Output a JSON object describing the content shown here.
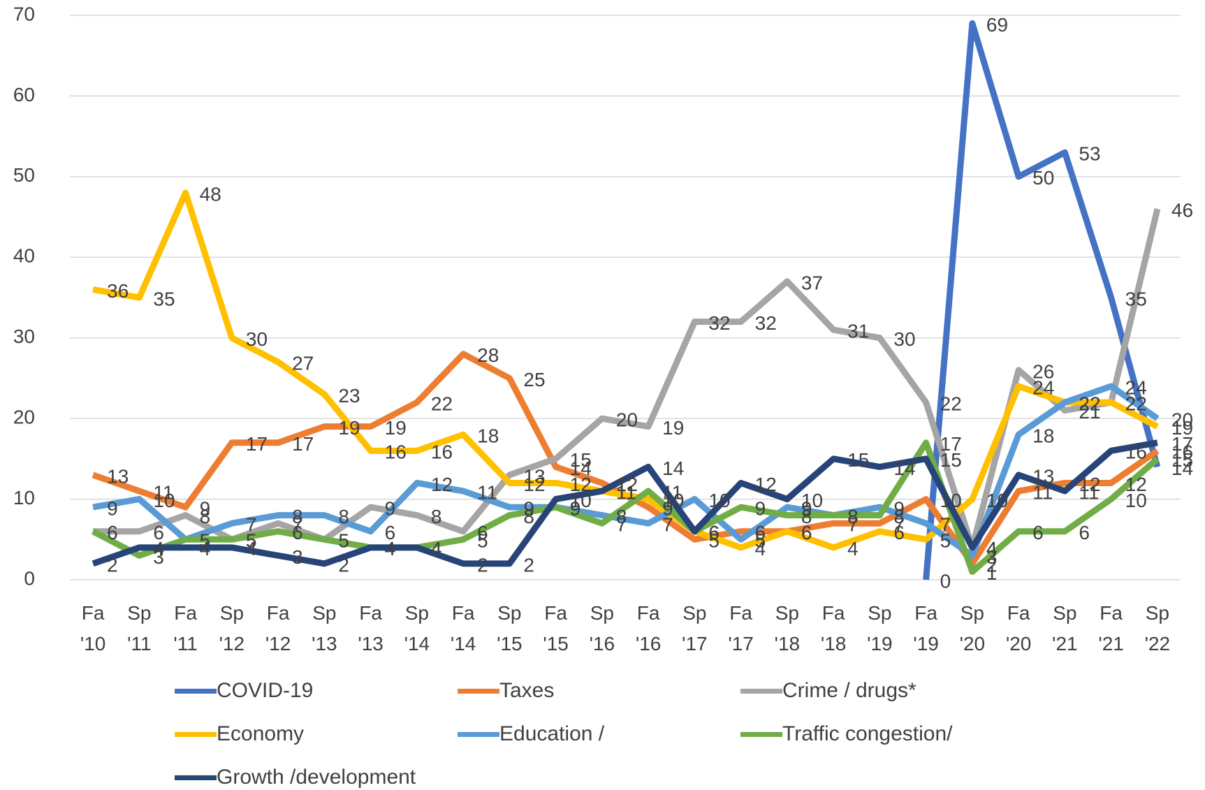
{
  "chart_data": {
    "type": "line",
    "categories": [
      "Fa '10",
      "Sp '11",
      "Fa '11",
      "Sp '12",
      "Fa '12",
      "Sp '13",
      "Fa '13",
      "Sp '14",
      "Fa '14",
      "Sp '15",
      "Fa '15",
      "Sp '16",
      "Fa '16",
      "Sp '17",
      "Fa '17",
      "Sp '18",
      "Fa '18",
      "Sp '19",
      "Fa '19",
      "Sp '20",
      "Fa '20",
      "Sp '21",
      "Fa '21",
      "Sp '22"
    ],
    "series": [
      {
        "name": "COVID-19",
        "color": "#4472c4",
        "values": [
          null,
          null,
          null,
          null,
          null,
          null,
          null,
          null,
          null,
          null,
          null,
          null,
          null,
          null,
          null,
          null,
          null,
          null,
          0,
          69,
          50,
          53,
          35,
          14
        ]
      },
      {
        "name": "Taxes",
        "color": "#ed7d31",
        "values": [
          13,
          11,
          9,
          17,
          17,
          19,
          19,
          22,
          28,
          25,
          14,
          12,
          9,
          5,
          6,
          6,
          7,
          7,
          10,
          2,
          11,
          12,
          12,
          16
        ]
      },
      {
        "name": "Crime / drugs*",
        "color": "#a5a5a5",
        "values": [
          6,
          6,
          8,
          5,
          7,
          5,
          9,
          8,
          6,
          13,
          15,
          20,
          19,
          32,
          32,
          37,
          31,
          30,
          22,
          4,
          26,
          21,
          22,
          46
        ]
      },
      {
        "name": "Economy",
        "color": "#ffc000",
        "values": [
          36,
          35,
          48,
          30,
          27,
          23,
          16,
          16,
          18,
          12,
          12,
          11,
          10,
          6,
          4,
          6,
          4,
          6,
          5,
          10,
          24,
          22,
          22,
          19
        ]
      },
      {
        "name": "Education /",
        "color": "#5b9bd5",
        "values": [
          9,
          10,
          5,
          7,
          8,
          8,
          6,
          12,
          11,
          9,
          9,
          8,
          7,
          10,
          5,
          9,
          8,
          9,
          7,
          3,
          18,
          22,
          24,
          20
        ]
      },
      {
        "name": "Traffic congestion/",
        "color": "#70ad47",
        "values": [
          6,
          3,
          5,
          5,
          6,
          5,
          4,
          4,
          5,
          8,
          9,
          7,
          11,
          6,
          9,
          8,
          8,
          8,
          17,
          1,
          6,
          6,
          10,
          15
        ]
      },
      {
        "name": "Growth /development",
        "color": "#264478",
        "values": [
          2,
          4,
          4,
          4,
          3,
          2,
          4,
          4,
          2,
          2,
          10,
          11,
          14,
          6,
          12,
          10,
          15,
          14,
          15,
          4,
          13,
          11,
          16,
          17
        ]
      }
    ],
    "ylim": [
      0,
      70
    ],
    "yticks": [
      0,
      10,
      20,
      30,
      40,
      50,
      60,
      70
    ],
    "grid": true
  }
}
